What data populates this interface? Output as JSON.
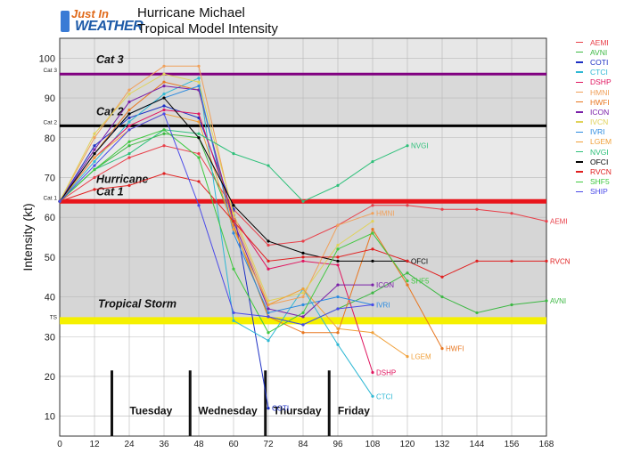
{
  "logo": {
    "line1": "Just In",
    "line2": "WEATHER"
  },
  "title_line1": "Hurricane Michael",
  "title_line2": "Tropical Model Intensity",
  "chart_data": {
    "type": "line",
    "xlabel": "",
    "ylabel": "Intensity (kt)",
    "xlim": [
      0,
      168
    ],
    "ylim": [
      5,
      105
    ],
    "x_ticks": [
      0,
      12,
      24,
      36,
      48,
      60,
      72,
      84,
      96,
      108,
      120,
      132,
      144,
      156,
      168
    ],
    "y_ticks": [
      10,
      20,
      30,
      40,
      50,
      60,
      70,
      80,
      90,
      100
    ],
    "grid": true,
    "categories_marks": [
      {
        "label": "Cat 3",
        "short": "Cat 3",
        "value": 96,
        "color": "#800080",
        "band_color": "#e7e7e7"
      },
      {
        "label": "Cat 2",
        "short": "Cat 2",
        "value": 83,
        "color": "#000000",
        "band_color": "#d9d9d9"
      },
      {
        "label": "Hurricane\nCat 1",
        "short": "Cat 1",
        "value": 64,
        "color": "#e8151b",
        "band_color": "#e9e9e9"
      },
      {
        "label": "Tropical Storm",
        "short": "TS",
        "value": 34,
        "color": "#f5f000",
        "band_color": "#d6d6d6"
      }
    ],
    "day_labels": [
      {
        "label": "Tuesday",
        "start": 18,
        "end": 45
      },
      {
        "label": "Wednesday",
        "start": 45,
        "end": 71
      },
      {
        "label": "Thursday",
        "start": 71,
        "end": 93
      },
      {
        "label": "Friday",
        "start": 93,
        "end": 110
      }
    ],
    "series": [
      {
        "name": "AEMI",
        "color": "#e8404a",
        "x": [
          0,
          12,
          24,
          36,
          48,
          60,
          72,
          84,
          96,
          108,
          120,
          132,
          144,
          156,
          168
        ],
        "y": [
          64,
          70,
          75,
          78,
          76,
          62,
          53,
          54,
          58,
          63,
          63,
          62,
          62,
          61,
          59
        ]
      },
      {
        "name": "AVNI",
        "color": "#3cb843",
        "x": [
          0,
          12,
          24,
          36,
          48,
          60,
          72,
          84,
          96,
          108,
          120,
          132,
          144,
          156,
          168
        ],
        "y": [
          64,
          72,
          78,
          81,
          80,
          58,
          35,
          33,
          37,
          41,
          46,
          40,
          36,
          38,
          39
        ]
      },
      {
        "name": "COTI",
        "color": "#1c2fc4",
        "x": [
          0,
          12,
          24,
          36,
          48,
          60,
          72
        ],
        "y": [
          64,
          78,
          85,
          88,
          85,
          62,
          12
        ]
      },
      {
        "name": "CTCI",
        "color": "#2eb8d4",
        "x": [
          0,
          12,
          24,
          36,
          48,
          60,
          72,
          84,
          96,
          108
        ],
        "y": [
          64,
          74,
          84,
          91,
          95,
          34,
          29,
          42,
          28,
          15
        ]
      },
      {
        "name": "DSHP",
        "color": "#e0155f",
        "x": [
          0,
          12,
          24,
          36,
          48,
          60,
          72,
          84,
          96,
          108
        ],
        "y": [
          64,
          75,
          83,
          87,
          86,
          60,
          47,
          49,
          48,
          21
        ]
      },
      {
        "name": "HMNI",
        "color": "#f0a05a",
        "x": [
          0,
          12,
          24,
          36,
          48,
          60,
          72,
          84,
          96,
          108
        ],
        "y": [
          64,
          80,
          92,
          98,
          98,
          60,
          38,
          40,
          58,
          61
        ]
      },
      {
        "name": "HWFI",
        "color": "#e8761f",
        "x": [
          0,
          12,
          24,
          36,
          48,
          60,
          72,
          84,
          96,
          108,
          120,
          132
        ],
        "y": [
          64,
          76,
          87,
          94,
          92,
          58,
          35,
          31,
          31,
          57,
          43,
          27
        ]
      },
      {
        "name": "ICON",
        "color": "#7a1fa8",
        "x": [
          0,
          12,
          24,
          36,
          48,
          60,
          72,
          84,
          96,
          108
        ],
        "y": [
          64,
          77,
          89,
          93,
          92,
          59,
          37,
          35,
          43,
          43
        ]
      },
      {
        "name": "IVCN",
        "color": "#e0d25a",
        "x": [
          0,
          12,
          24,
          36,
          48,
          60,
          72,
          84,
          96,
          108
        ],
        "y": [
          64,
          81,
          91,
          96,
          94,
          61,
          39,
          41,
          53,
          59
        ]
      },
      {
        "name": "IVRI",
        "color": "#2a8ae0",
        "x": [
          0,
          12,
          24,
          36,
          48,
          60,
          72,
          84,
          96,
          108
        ],
        "y": [
          64,
          76,
          86,
          90,
          93,
          56,
          36,
          38,
          40,
          38
        ]
      },
      {
        "name": "LGEM",
        "color": "#f0a03a",
        "x": [
          0,
          12,
          24,
          36,
          48,
          60,
          72,
          84,
          96,
          108,
          120
        ],
        "y": [
          64,
          75,
          82,
          86,
          84,
          57,
          38,
          42,
          32,
          31,
          25
        ]
      },
      {
        "name": "NVGI",
        "color": "#2ec07a",
        "x": [
          0,
          12,
          24,
          36,
          48,
          60,
          72,
          84,
          96,
          108,
          120
        ],
        "y": [
          64,
          72,
          76,
          82,
          81,
          76,
          73,
          64,
          68,
          74,
          78
        ]
      },
      {
        "name": "OFCI",
        "color": "#000000",
        "x": [
          0,
          12,
          24,
          36,
          48,
          60,
          72,
          84,
          96,
          108,
          120
        ],
        "y": [
          64,
          76,
          86,
          90,
          80,
          63,
          54,
          51,
          49,
          49,
          49
        ]
      },
      {
        "name": "RVCN",
        "color": "#e02020",
        "x": [
          0,
          12,
          24,
          36,
          48,
          60,
          72,
          84,
          96,
          108,
          120,
          132,
          144,
          156,
          168
        ],
        "y": [
          64,
          67,
          68,
          71,
          69,
          59,
          49,
          50,
          50,
          52,
          49,
          45,
          49,
          49,
          49
        ]
      },
      {
        "name": "SHF5",
        "color": "#40c840",
        "x": [
          0,
          12,
          24,
          36,
          48,
          60,
          72,
          84,
          96,
          108,
          120
        ],
        "y": [
          64,
          72,
          79,
          82,
          75,
          47,
          31,
          36,
          52,
          56,
          44
        ]
      },
      {
        "name": "SHIP",
        "color": "#4a4ae8",
        "x": [
          0,
          12,
          24,
          36,
          48,
          60,
          72,
          84,
          96,
          108
        ],
        "y": [
          64,
          73,
          82,
          86,
          63,
          36,
          35,
          33,
          37,
          38
        ]
      }
    ],
    "end_labels": [
      {
        "series": "NVGI",
        "x": 120,
        "y": 78
      },
      {
        "series": "HMNI",
        "x": 108,
        "y": 61
      },
      {
        "series": "AEMI",
        "x": 168,
        "y": 59
      },
      {
        "series": "OFCI",
        "x": 120,
        "y": 49
      },
      {
        "series": "RVCN",
        "x": 168,
        "y": 49
      },
      {
        "series": "SHF5",
        "x": 120,
        "y": 44
      },
      {
        "series": "ICON",
        "x": 108,
        "y": 43
      },
      {
        "series": "AVNI",
        "x": 168,
        "y": 39
      },
      {
        "series": "IVRI",
        "x": 108,
        "y": 38
      },
      {
        "series": "HWFI",
        "x": 132,
        "y": 27
      },
      {
        "series": "LGEM",
        "x": 120,
        "y": 25
      },
      {
        "series": "DSHP",
        "x": 108,
        "y": 21
      },
      {
        "series": "CTCI",
        "x": 108,
        "y": 15
      },
      {
        "series": "COTI",
        "x": 72,
        "y": 12
      }
    ]
  }
}
